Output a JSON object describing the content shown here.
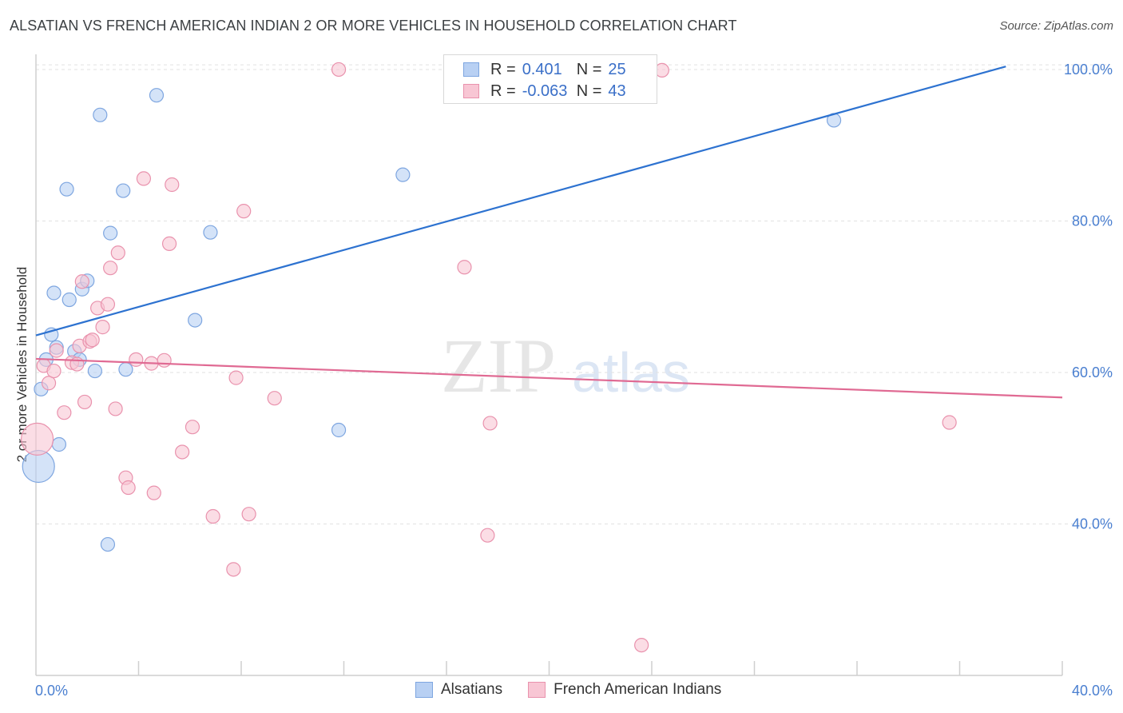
{
  "title": "ALSATIAN VS FRENCH AMERICAN INDIAN 2 OR MORE VEHICLES IN HOUSEHOLD CORRELATION CHART",
  "source": "Source: ZipAtlas.com",
  "watermark": {
    "zip": "ZIP",
    "atlas": "atlas"
  },
  "legend": {
    "rows": [
      {
        "r_label": "R =",
        "r_value": "0.401",
        "n_label": "N =",
        "n_value": "25"
      },
      {
        "r_label": "R =",
        "r_value": "-0.063",
        "n_label": "N =",
        "n_value": "43"
      }
    ]
  },
  "bottom_legend": {
    "series_a": "Alsatians",
    "series_b": "French American Indians"
  },
  "colors": {
    "alsatian_fill": "#b8d0f3",
    "alsatian_stroke": "#7ea6e0",
    "alsatian_line": "#2d72d0",
    "french_fill": "#f8c6d4",
    "french_stroke": "#e992ad",
    "french_line": "#e06a93",
    "tick_label": "#4a7fd0"
  },
  "chart_data": {
    "type": "scatter",
    "title": "ALSATIAN VS FRENCH AMERICAN INDIAN 2 OR MORE VEHICLES IN HOUSEHOLD CORRELATION CHART",
    "xlabel": "",
    "ylabel": "2 or more Vehicles in Household",
    "xlim": [
      0,
      40
    ],
    "ylim": [
      20,
      102
    ],
    "x_tick_labels": [
      "0.0%",
      "40.0%"
    ],
    "y_ticks": [
      {
        "value": 100,
        "label": "100.0%"
      },
      {
        "value": 80,
        "label": "80.0%"
      },
      {
        "value": 60,
        "label": "60.0%"
      },
      {
        "value": 40,
        "label": "40.0%"
      }
    ],
    "x_minor_ticks": [
      4,
      8,
      12,
      16,
      20,
      24,
      28,
      32,
      36,
      40
    ],
    "series": [
      {
        "name": "Alsatians",
        "r": 0.401,
        "n": 25,
        "trend": {
          "x": [
            0,
            37.8
          ],
          "y": [
            64.9,
            100.4
          ]
        },
        "points": [
          {
            "x": 0.1,
            "y": 47.6,
            "big": true
          },
          {
            "x": 0.2,
            "y": 57.8
          },
          {
            "x": 0.4,
            "y": 61.7
          },
          {
            "x": 0.6,
            "y": 65.0
          },
          {
            "x": 0.7,
            "y": 70.5
          },
          {
            "x": 0.8,
            "y": 63.3
          },
          {
            "x": 0.9,
            "y": 50.5
          },
          {
            "x": 1.2,
            "y": 84.2
          },
          {
            "x": 1.3,
            "y": 69.6
          },
          {
            "x": 1.5,
            "y": 62.8
          },
          {
            "x": 1.7,
            "y": 61.7
          },
          {
            "x": 1.8,
            "y": 71.0
          },
          {
            "x": 2.0,
            "y": 72.1
          },
          {
            "x": 2.3,
            "y": 60.2
          },
          {
            "x": 2.5,
            "y": 94.0
          },
          {
            "x": 2.8,
            "y": 37.3
          },
          {
            "x": 2.9,
            "y": 78.4
          },
          {
            "x": 3.4,
            "y": 84.0
          },
          {
            "x": 3.5,
            "y": 60.4
          },
          {
            "x": 4.7,
            "y": 96.6
          },
          {
            "x": 6.2,
            "y": 66.9
          },
          {
            "x": 6.8,
            "y": 78.5
          },
          {
            "x": 11.8,
            "y": 52.4
          },
          {
            "x": 14.3,
            "y": 86.1
          },
          {
            "x": 31.1,
            "y": 93.3
          }
        ]
      },
      {
        "name": "French American Indians",
        "r": -0.063,
        "n": 43,
        "trend": {
          "x": [
            0,
            40
          ],
          "y": [
            61.8,
            56.7
          ]
        },
        "points": [
          {
            "x": 0.05,
            "y": 51.2,
            "big": true
          },
          {
            "x": 0.3,
            "y": 60.9
          },
          {
            "x": 0.5,
            "y": 58.6
          },
          {
            "x": 0.7,
            "y": 60.2
          },
          {
            "x": 0.8,
            "y": 62.9
          },
          {
            "x": 1.1,
            "y": 54.7
          },
          {
            "x": 1.4,
            "y": 61.3
          },
          {
            "x": 1.6,
            "y": 61.1
          },
          {
            "x": 1.7,
            "y": 63.5
          },
          {
            "x": 1.8,
            "y": 72.0
          },
          {
            "x": 1.9,
            "y": 56.1
          },
          {
            "x": 2.1,
            "y": 64.1
          },
          {
            "x": 2.2,
            "y": 64.3
          },
          {
            "x": 2.4,
            "y": 68.5
          },
          {
            "x": 2.6,
            "y": 66.0
          },
          {
            "x": 2.8,
            "y": 69.0
          },
          {
            "x": 2.9,
            "y": 73.8
          },
          {
            "x": 3.1,
            "y": 55.2
          },
          {
            "x": 3.2,
            "y": 75.8
          },
          {
            "x": 3.5,
            "y": 46.1
          },
          {
            "x": 3.6,
            "y": 44.8
          },
          {
            "x": 3.9,
            "y": 61.7
          },
          {
            "x": 4.2,
            "y": 85.6
          },
          {
            "x": 4.5,
            "y": 61.2
          },
          {
            "x": 4.6,
            "y": 44.1
          },
          {
            "x": 5.0,
            "y": 61.6
          },
          {
            "x": 5.2,
            "y": 77.0
          },
          {
            "x": 5.3,
            "y": 84.8
          },
          {
            "x": 5.7,
            "y": 49.5
          },
          {
            "x": 6.1,
            "y": 52.8
          },
          {
            "x": 6.9,
            "y": 41.0
          },
          {
            "x": 7.7,
            "y": 34.0
          },
          {
            "x": 7.8,
            "y": 59.3
          },
          {
            "x": 8.1,
            "y": 81.3
          },
          {
            "x": 8.3,
            "y": 41.3
          },
          {
            "x": 9.3,
            "y": 56.6
          },
          {
            "x": 11.8,
            "y": 100.0
          },
          {
            "x": 16.7,
            "y": 73.9
          },
          {
            "x": 17.6,
            "y": 38.5
          },
          {
            "x": 17.7,
            "y": 53.3
          },
          {
            "x": 23.6,
            "y": 24.0
          },
          {
            "x": 24.4,
            "y": 99.9
          },
          {
            "x": 35.6,
            "y": 53.4
          }
        ]
      }
    ]
  }
}
